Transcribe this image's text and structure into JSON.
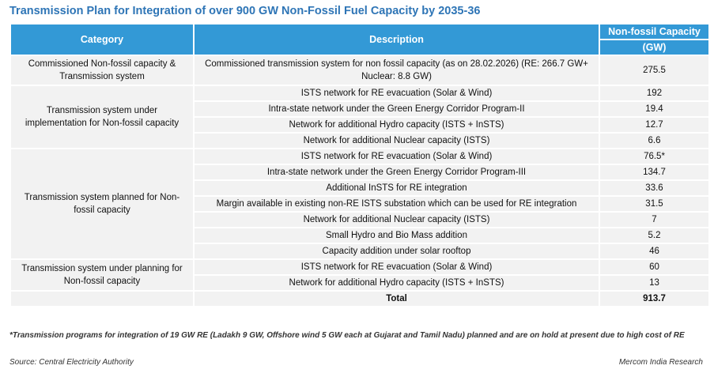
{
  "title": "Transmission Plan for Integration of over 900 GW Non-Fossil Fuel Capacity by 2035-36",
  "table": {
    "header": {
      "category": "Category",
      "description": "Description",
      "capacity": "Non-fossil Capacity",
      "unit": "(GW)"
    },
    "groups": [
      {
        "category": "Commissioned Non-fossil capacity & Transmission system",
        "rows": [
          {
            "description": "Commissioned transmission system for non fossil capacity (as on 28.02.2026) (RE: 266.7 GW+ Nuclear: 8.8 GW)",
            "value": 275.5
          }
        ]
      },
      {
        "category": "Transmission system under implementation for Non-fossil capacity",
        "rows": [
          {
            "description": "ISTS network for RE evacuation (Solar & Wind)",
            "value": 192
          },
          {
            "description": "Intra-state network under the Green Energy Corridor Program-II",
            "value": 19.4
          },
          {
            "description": "Network for additional Hydro capacity (ISTS + InSTS)",
            "value": 12.7
          },
          {
            "description": "Network for additional Nuclear capacity (ISTS)",
            "value": 6.6
          }
        ]
      },
      {
        "category": "Transmission system planned for Non-fossil capacity",
        "rows": [
          {
            "description": "ISTS network for RE evacuation (Solar & Wind)",
            "value": "76.5*"
          },
          {
            "description": "Intra-state network under the Green Energy Corridor Program-III",
            "value": 134.7
          },
          {
            "description": "Additional InSTS for RE integration",
            "value": 33.6
          },
          {
            "description": "Margin available in existing non-RE ISTS substation which can be used for RE integration",
            "value": 31.5
          },
          {
            "description": "Network for additional Nuclear capacity (ISTS)",
            "value": 7
          },
          {
            "description": "Small Hydro and Bio Mass addition",
            "value": 5.2
          },
          {
            "description": "Capacity addition under solar rooftop",
            "value": 46
          }
        ]
      },
      {
        "category": "Transmission system under planning for Non-fossil capacity",
        "rows": [
          {
            "description": "ISTS network for RE evacuation (Solar & Wind)",
            "value": 60
          },
          {
            "description": "Network for additional Hydro capacity (ISTS + InSTS)",
            "value": 13
          }
        ]
      }
    ],
    "total": {
      "label": "Total",
      "value": 913.7
    }
  },
  "footnote": "*Transmission programs for integration of 19 GW RE (Ladakh 9 GW, Offshore wind 5 GW each at Gujarat and Tamil Nadu) planned and are on hold at present due to high cost of RE",
  "source": "Source: Central Electricity Authority",
  "credit": "Mercom India Research"
}
